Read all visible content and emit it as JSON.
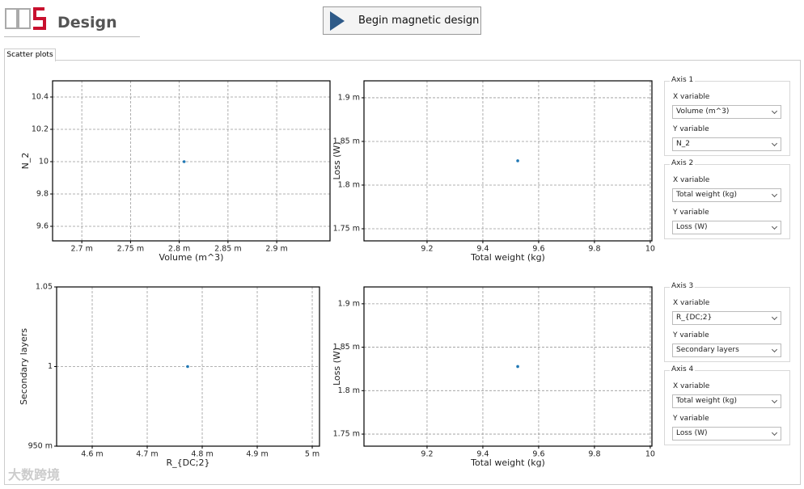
{
  "header": {
    "logo_text": "Design",
    "button": "Begin magnetic design"
  },
  "tab": "Scatter plots",
  "watermark": "大数跨境",
  "chart_data": [
    {
      "type": "scatter",
      "xlabel": "Volume (m^3)",
      "ylabel": "N_2",
      "color": "#1f77b4",
      "grid": true,
      "x": [
        0.002805
      ],
      "values": [
        10
      ],
      "xlim": [
        0.00267,
        0.0029547
      ],
      "ylim": [
        9.51,
        10.5
      ],
      "xticks": [
        {
          "value": 0.0027,
          "label": "2.7 m"
        },
        {
          "value": 0.00275,
          "label": "2.75 m"
        },
        {
          "value": 0.0028,
          "label": "2.8 m"
        },
        {
          "value": 0.00285,
          "label": "2.85 m"
        },
        {
          "value": 0.0029,
          "label": "2.9 m"
        }
      ],
      "yticks": [
        9.6,
        9.8,
        10,
        10.2,
        10.4
      ]
    },
    {
      "type": "scatter",
      "xlabel": "Total weight (kg)",
      "ylabel": "Loss (W)",
      "color": "#1f77b4",
      "grid": true,
      "x": [
        9.525
      ],
      "values": [
        0.0018278
      ],
      "xlim": [
        8.974,
        10.006
      ],
      "ylim": [
        0.0017361,
        0.0019194
      ],
      "xticks": [
        9.2,
        9.4,
        9.6,
        9.8,
        10
      ],
      "yticks": [
        {
          "value": 0.00175,
          "label": "1.75 m"
        },
        {
          "value": 0.0018,
          "label": "1.8 m"
        },
        {
          "value": 0.00185,
          "label": "1.85 m"
        },
        {
          "value": 0.0019,
          "label": "1.9 m"
        }
      ]
    },
    {
      "type": "scatter",
      "xlabel": "R_{DC;2}",
      "ylabel": "Secondary layers",
      "color": "#1f77b4",
      "grid": true,
      "x": [
        0.0047735
      ],
      "values": [
        1
      ],
      "xlim": [
        0.0045353,
        0.0050132
      ],
      "ylim": [
        0.95,
        1.05
      ],
      "xticks": [
        {
          "value": 0.0046,
          "label": "4.6 m"
        },
        {
          "value": 0.0047,
          "label": "4.7 m"
        },
        {
          "value": 0.0048,
          "label": "4.8 m"
        },
        {
          "value": 0.0049,
          "label": "4.9 m"
        },
        {
          "value": 0.005,
          "label": "5 m"
        }
      ],
      "yticks": [
        {
          "value": 0.95,
          "label": "950 m"
        },
        1,
        1.05
      ]
    },
    {
      "type": "scatter",
      "xlabel": "Total weight (kg)",
      "ylabel": "Loss (W)",
      "color": "#1f77b4",
      "grid": true,
      "x": [
        9.525
      ],
      "values": [
        0.0018278
      ],
      "xlim": [
        8.974,
        10.006
      ],
      "ylim": [
        0.0017361,
        0.0019194
      ],
      "xticks": [
        9.2,
        9.4,
        9.6,
        9.8,
        10
      ],
      "yticks": [
        {
          "value": 0.00175,
          "label": "1.75 m"
        },
        {
          "value": 0.0018,
          "label": "1.8 m"
        },
        {
          "value": 0.00185,
          "label": "1.85 m"
        },
        {
          "value": 0.0019,
          "label": "1.9 m"
        }
      ]
    }
  ],
  "axis_panels": [
    {
      "title": "Axis 1",
      "x_label": "X variable",
      "x_value": "Volume (m^3)",
      "y_label": "Y variable",
      "y_value": "N_2"
    },
    {
      "title": "Axis 2",
      "x_label": "X variable",
      "x_value": "Total weight (kg)",
      "y_label": "Y variable",
      "y_value": "Loss (W)"
    },
    {
      "title": "Axis 3",
      "x_label": "X variable",
      "x_value": "R_{DC;2}",
      "y_label": "Y variable",
      "y_value": "Secondary layers"
    },
    {
      "title": "Axis 4",
      "x_label": "X variable",
      "x_value": "Total weight (kg)",
      "y_label": "Y variable",
      "y_value": "Loss (W)"
    }
  ]
}
